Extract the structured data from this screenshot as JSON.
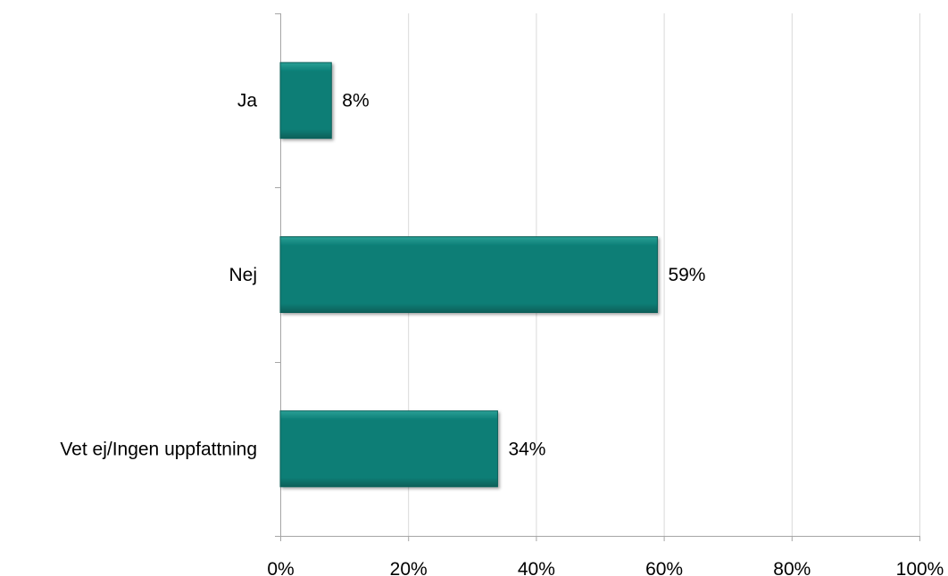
{
  "chart_data": {
    "type": "bar",
    "orientation": "horizontal",
    "categories": [
      "Ja",
      "Nej",
      "Vet ej/Ingen uppfattning"
    ],
    "values": [
      8,
      59,
      34
    ],
    "data_labels": [
      "8%",
      "59%",
      "34%"
    ],
    "xlim": [
      0,
      100
    ],
    "x_ticks": [
      0,
      20,
      40,
      60,
      80,
      100
    ],
    "x_tick_labels": [
      "0%",
      "20%",
      "40%",
      "60%",
      "80%",
      "100%"
    ],
    "title": "",
    "xlabel": "",
    "ylabel": "",
    "grid": "vertical",
    "legend": "none",
    "colors": {
      "bar": "#0b7e76",
      "bar_dark": "#075f59",
      "bar_light": "#2aa096",
      "gridline": "#d9d9d9",
      "axis": "#a6a6a6"
    }
  }
}
